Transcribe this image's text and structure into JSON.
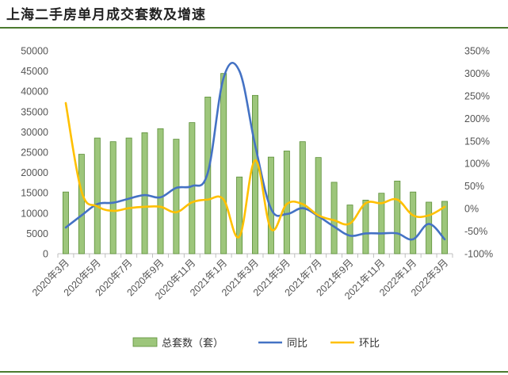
{
  "title": "上海二手房单月成交套数及增速",
  "chart_data": {
    "type": "bar",
    "title": "上海二手房单月成交套数及增速",
    "legend_position": "bottom",
    "grid": false,
    "y_left": {
      "min": 0,
      "max": 50000,
      "step": 5000,
      "ticks": [
        "0",
        "5000",
        "10000",
        "15000",
        "20000",
        "25000",
        "30000",
        "35000",
        "40000",
        "45000",
        "50000"
      ]
    },
    "y_right": {
      "min": -100,
      "max": 350,
      "step": 50,
      "ticks": [
        "-100%",
        "-50%",
        "0%",
        "50%",
        "100%",
        "150%",
        "200%",
        "250%",
        "300%",
        "350%"
      ]
    },
    "categories": [
      "2020年3月",
      "2020年4月",
      "2020年5月",
      "2020年6月",
      "2020年7月",
      "2020年8月",
      "2020年9月",
      "2020年10月",
      "2020年11月",
      "2020年12月",
      "2021年1月",
      "2021年2月",
      "2021年3月",
      "2021年4月",
      "2021年5月",
      "2021年6月",
      "2021年7月",
      "2021年8月",
      "2021年9月",
      "2021年10月",
      "2021年11月",
      "2021年12月",
      "2022年1月",
      "2022年2月",
      "2022年3月"
    ],
    "x_tick_labels": [
      "2020年3月",
      "2020年5月",
      "2020年7月",
      "2020年9月",
      "2020年11月",
      "2021年1月",
      "2021年3月",
      "2021年5月",
      "2021年7月",
      "2021年9月",
      "2021年11月",
      "2022年1月",
      "2022年3月"
    ],
    "series": [
      {
        "name": "总套数（套）",
        "type": "bar",
        "axis": "left",
        "color": "#9dc67b",
        "edge": "#5c8f38",
        "values": [
          15200,
          24500,
          28500,
          27600,
          28500,
          29800,
          30800,
          28200,
          32300,
          38600,
          44400,
          18900,
          39000,
          23800,
          25300,
          27600,
          23700,
          17600,
          12000,
          13200,
          14900,
          17900,
          15200,
          12700,
          12900
        ]
      },
      {
        "name": "同比",
        "type": "line",
        "axis": "right",
        "color": "#4472c4",
        "values": [
          -42,
          -15,
          10,
          13,
          22,
          30,
          25,
          46,
          50,
          80,
          290,
          305,
          140,
          0,
          -12,
          1,
          -17,
          -40,
          -60,
          -55,
          -55,
          -55,
          -68,
          -34,
          -68
        ]
      },
      {
        "name": "环比",
        "type": "line",
        "axis": "right",
        "color": "#ffc000",
        "values": [
          234,
          38,
          5,
          -5,
          1,
          4,
          4,
          -8,
          14,
          20,
          20,
          -62,
          107,
          -45,
          10,
          10,
          -15,
          -26,
          -33,
          12,
          12,
          20,
          -15,
          -15,
          4
        ]
      }
    ]
  }
}
